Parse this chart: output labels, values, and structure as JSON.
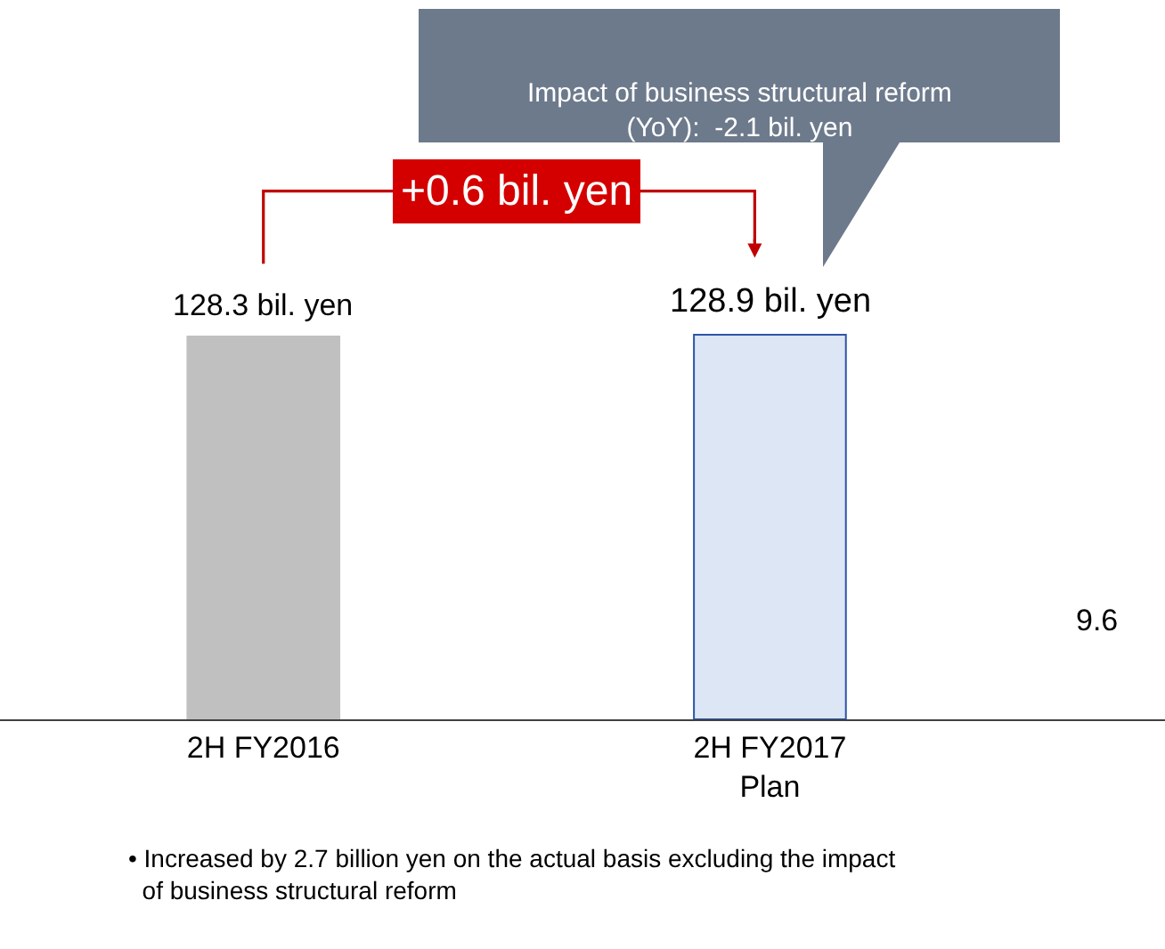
{
  "chart_data": {
    "type": "bar",
    "categories": [
      "2H FY2016",
      "2H FY2017\nPlan"
    ],
    "values": [
      128.3,
      128.9
    ],
    "colors": [
      "#c0c0c0",
      "#dce6f5"
    ],
    "value_labels": [
      "128.3 bil. yen",
      "128.9 bil. yen"
    ],
    "annotations": [
      "+0.6 bil. yen",
      "Impact of business structural reform\n(YoY):  -2.1 bil. yen",
      "9.6",
      "• Increased by 2.7 billion yen on the actual basis excluding the impact\n  of business structural reform"
    ]
  }
}
